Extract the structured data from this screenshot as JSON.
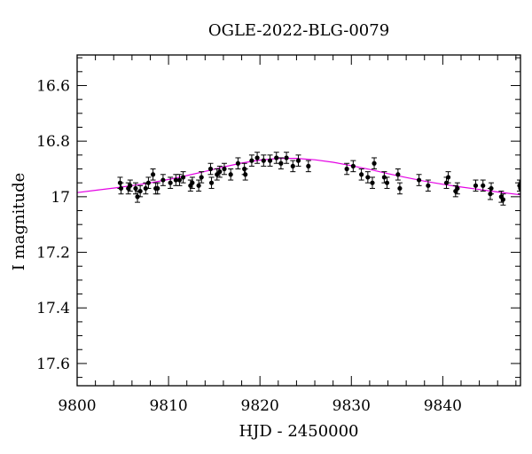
{
  "chart_data": {
    "type": "scatter",
    "title": "OGLE-2022-BLG-0079",
    "xlabel": "HJD - 2450000",
    "ylabel": "I magnitude",
    "xlim": [
      9800,
      9848.5
    ],
    "ylim": [
      17.68,
      16.49
    ],
    "y_inverted": true,
    "x_ticks": [
      9800,
      9810,
      9820,
      9830,
      9840
    ],
    "x_tick_labels": [
      "9800",
      "9810",
      "9820",
      "9830",
      "9840"
    ],
    "y_ticks": [
      16.6,
      16.8,
      17.0,
      17.2,
      17.4,
      17.6
    ],
    "y_tick_labels": [
      "16.6",
      "16.8",
      "17",
      "17.2",
      "17.4",
      "17.6"
    ],
    "grid": false,
    "legend": "none",
    "colors": {
      "data": "#000000",
      "model": "#e400e4"
    },
    "series": [
      {
        "kind": "points",
        "marker": "filled-circle",
        "x": [
          9804.7,
          9804.8,
          9805.6,
          9805.8,
          9806.4,
          9806.6,
          9806.9,
          9807.5,
          9807.8,
          9808.3,
          9808.6,
          9808.8,
          9809.4,
          9810.2,
          9810.8,
          9811.2,
          9811.6,
          9812.4,
          9812.6,
          9813.3,
          9813.6,
          9814.6,
          9814.7,
          9815.3,
          9815.6,
          9816.1,
          9816.8,
          9817.6,
          9818.3,
          9818.4,
          9819.1,
          9819.7,
          9820.4,
          9821.1,
          9821.8,
          9822.3,
          9822.9,
          9823.6,
          9824.2,
          9825.3,
          9829.5,
          9830.2,
          9831.1,
          9831.8,
          9832.3,
          9832.5,
          9833.6,
          9833.9,
          9835.1,
          9835.3,
          9837.4,
          9838.4,
          9840.4,
          9840.6,
          9841.4,
          9841.6,
          9843.6,
          9844.4,
          9845.2,
          9845.3,
          9846.4,
          9846.6,
          9848.4,
          9848.5
        ],
        "y": [
          16.95,
          16.97,
          16.97,
          16.96,
          16.97,
          17.0,
          16.98,
          16.97,
          16.95,
          16.92,
          16.97,
          16.97,
          16.94,
          16.95,
          16.94,
          16.94,
          16.93,
          16.96,
          16.95,
          16.96,
          16.93,
          16.9,
          16.95,
          16.92,
          16.91,
          16.9,
          16.92,
          16.88,
          16.9,
          16.92,
          16.87,
          16.86,
          16.87,
          16.87,
          16.86,
          16.88,
          16.86,
          16.89,
          16.87,
          16.89,
          16.9,
          16.89,
          16.92,
          16.93,
          16.95,
          16.88,
          16.93,
          16.95,
          16.92,
          16.97,
          16.94,
          16.96,
          16.95,
          16.93,
          16.98,
          16.97,
          16.96,
          16.96,
          16.99,
          16.97,
          17.0,
          17.01,
          16.96,
          16.97
        ],
        "yerr": 0.02
      },
      {
        "kind": "line",
        "x": [
          9800.0,
          9802.0,
          9804.0,
          9806.0,
          9808.0,
          9810.0,
          9812.0,
          9814.0,
          9816.0,
          9818.0,
          9820.0,
          9822.0,
          9824.0,
          9826.0,
          9828.0,
          9830.0,
          9832.0,
          9834.0,
          9836.0,
          9838.0,
          9840.0,
          9842.0,
          9844.0,
          9846.0,
          9848.5
        ],
        "y": [
          16.985,
          16.977,
          16.969,
          16.96,
          16.95,
          16.938,
          16.924,
          16.909,
          16.893,
          16.879,
          16.868,
          16.862,
          16.862,
          16.867,
          16.876,
          16.888,
          16.902,
          16.917,
          16.931,
          16.944,
          16.955,
          16.965,
          16.974,
          16.983,
          16.993
        ]
      }
    ]
  }
}
